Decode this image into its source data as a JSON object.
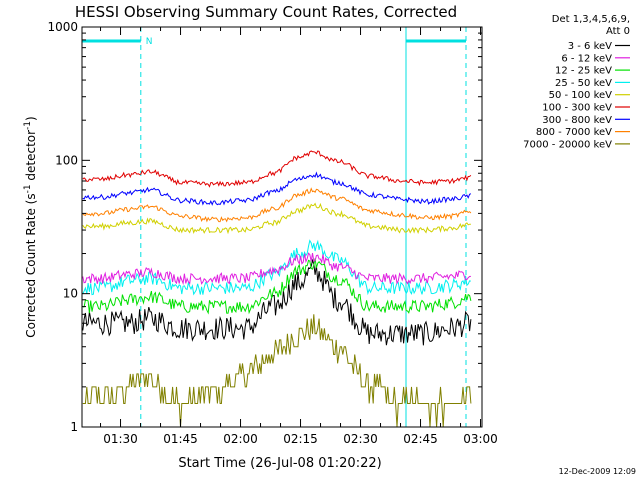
{
  "chart_data": {
    "type": "line",
    "title": "HESSI Observing Summary Count Rates, Corrected",
    "xlabel": "Start Time (26-Jul-08 01:20:22)",
    "ylabel_main": "Corrected Count Rate (s",
    "ylabel_sup1": "-1",
    "ylabel_mid": " detector",
    "ylabel_sup2": "-1",
    "ylabel_end": ")",
    "x_axis": {
      "start": "01:20:22",
      "end": "03:00",
      "ticks": [
        "01:30",
        "01:45",
        "02:00",
        "02:15",
        "02:30",
        "02:45",
        "03:00"
      ]
    },
    "y_axis": {
      "scale": "log",
      "ylim": [
        1,
        1000
      ],
      "ticks": [
        "1",
        "10",
        "100",
        "1000"
      ]
    },
    "legend_header": [
      "Det 1,3,4,5,6,9,",
      "Att 0"
    ],
    "legend_placement": "right",
    "series": [
      {
        "name": "3 - 6 keV",
        "color": "#000000",
        "values": [
          6,
          6,
          6.5,
          5.5,
          5.5,
          5.5,
          8,
          12,
          15,
          9,
          5,
          5,
          5,
          5.5,
          6
        ]
      },
      {
        "name": "6 - 12 keV",
        "color": "#e020e0",
        "values": [
          13,
          14,
          14.5,
          13,
          13,
          13,
          15,
          18,
          19,
          16,
          13,
          13,
          13,
          13.5,
          14
        ]
      },
      {
        "name": "12 - 25 keV",
        "color": "#00e000",
        "values": [
          8,
          9,
          9.5,
          8,
          8,
          8,
          10,
          15,
          17,
          13,
          8,
          8,
          8,
          8.5,
          9.5
        ]
      },
      {
        "name": "25 - 50 keV",
        "color": "#00f0f0",
        "values": [
          11,
          12.5,
          13,
          11,
          11,
          11,
          14,
          20,
          23,
          18,
          11,
          11,
          11,
          11.5,
          12.5
        ]
      },
      {
        "name": "50 - 100 keV",
        "color": "#d0d000",
        "values": [
          32,
          34,
          35,
          30,
          30,
          30,
          34,
          42,
          46,
          40,
          32,
          30,
          30,
          31,
          33
        ]
      },
      {
        "name": "100 - 300 keV",
        "color": "#e00000",
        "values": [
          72,
          78,
          82,
          68,
          66,
          68,
          80,
          105,
          115,
          98,
          76,
          70,
          68,
          70,
          74
        ]
      },
      {
        "name": "300 - 800 keV",
        "color": "#0000ff",
        "values": [
          53,
          57,
          60,
          50,
          48,
          50,
          58,
          72,
          78,
          68,
          55,
          51,
          49,
          51,
          54
        ]
      },
      {
        "name": "800 - 7000 keV",
        "color": "#ff8000",
        "values": [
          40,
          43,
          45,
          38,
          36,
          37,
          43,
          55,
          60,
          52,
          42,
          39,
          37,
          38,
          41
        ]
      },
      {
        "name": "7000 - 20000 keV",
        "color": "#808000",
        "values": [
          1.6,
          2.0,
          2.4,
          1.5,
          1.8,
          2.5,
          3.6,
          5.0,
          5.5,
          4.0,
          2.0,
          1.5,
          1.5,
          1.5,
          1.6
        ]
      }
    ],
    "series_times_min": [
      5,
      12,
      17,
      25,
      33,
      41,
      48,
      54,
      58,
      64,
      72,
      80,
      86,
      92,
      97
    ],
    "markers": {
      "label": "N"
    },
    "grid": false
  },
  "footer": {
    "timestamp": "12-Dec-2009 12:09"
  }
}
